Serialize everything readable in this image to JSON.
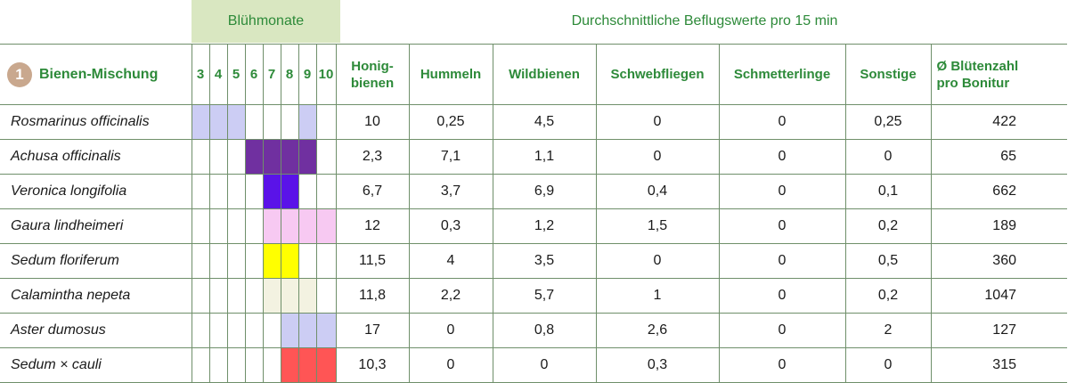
{
  "header": {
    "bluehmonate": "Blühmonate",
    "beflug": "Durchschnittliche Beflugswerte pro 15 min"
  },
  "table": {
    "badge": "1",
    "title": "Bienen-Mischung",
    "months": [
      "3",
      "4",
      "5",
      "6",
      "7",
      "8",
      "9",
      "10"
    ],
    "columns": [
      {
        "line1": "Honig-",
        "line2": "bienen"
      },
      {
        "line1": "Hummeln",
        "line2": ""
      },
      {
        "line1": "Wildbienen",
        "line2": ""
      },
      {
        "line1": "Schwebfliegen",
        "line2": ""
      },
      {
        "line1": "Schmetterlinge",
        "line2": ""
      },
      {
        "line1": "Sonstige",
        "line2": ""
      },
      {
        "line1": "Ø Blütenzahl",
        "line2": "pro Bonitur"
      }
    ],
    "rows": [
      {
        "species": "Rosmarinus officinalis",
        "bloom": [
          3,
          4,
          5,
          9
        ],
        "color": "#cccdf4",
        "values": [
          "10",
          "0,25",
          "4,5",
          "0",
          "0",
          "0,25",
          "422"
        ]
      },
      {
        "species": "Achusa officinalis",
        "bloom": [
          6,
          7,
          8,
          9
        ],
        "color": "#7030a0",
        "values": [
          "2,3",
          "7,1",
          "1,1",
          "0",
          "0",
          "0",
          "65"
        ]
      },
      {
        "species": "Veronica longifolia",
        "bloom": [
          7,
          8
        ],
        "color": "#5a13e8",
        "values": [
          "6,7",
          "3,7",
          "6,9",
          "0,4",
          "0",
          "0,1",
          "662"
        ]
      },
      {
        "species": "Gaura lindheimeri",
        "bloom": [
          7,
          8,
          9,
          10
        ],
        "color": "#f7c9f2",
        "values": [
          "12",
          "0,3",
          "1,2",
          "1,5",
          "0",
          "0,2",
          "189"
        ]
      },
      {
        "species": "Sedum floriferum",
        "bloom": [
          7,
          8
        ],
        "color": "#ffff00",
        "values": [
          "11,5",
          "4",
          "3,5",
          "0",
          "0",
          "0,5",
          "360"
        ]
      },
      {
        "species": "Calamintha nepeta",
        "bloom": [
          7,
          8,
          9
        ],
        "color": "#f3f2e1",
        "values": [
          "11,8",
          "2,2",
          "5,7",
          "1",
          "0",
          "0,2",
          "1047"
        ]
      },
      {
        "species": "Aster dumosus",
        "bloom": [
          8,
          9,
          10
        ],
        "color": "#cccdf4",
        "values": [
          "17",
          "0",
          "0,8",
          "2,6",
          "0",
          "2",
          "127"
        ]
      },
      {
        "species": "Sedum × cauli",
        "bloom": [
          8,
          9,
          10
        ],
        "color": "#ff5555",
        "values": [
          "10,3",
          "0",
          "0",
          "0,3",
          "0",
          "0",
          "315"
        ]
      }
    ]
  }
}
